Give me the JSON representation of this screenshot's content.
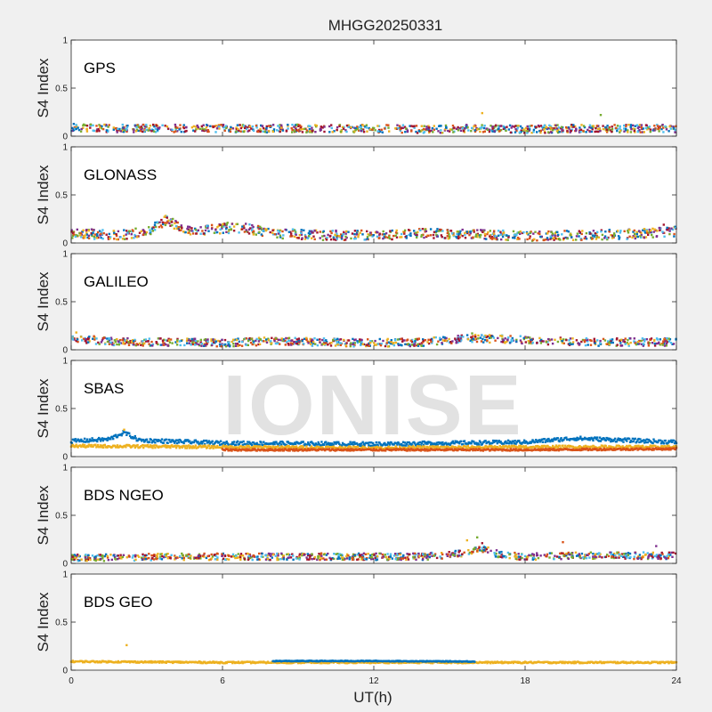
{
  "figure": {
    "title": "MHGG20250331",
    "watermark": "IONISE"
  },
  "colors": [
    "#0072bd",
    "#d95319",
    "#edb120",
    "#7e2f8e",
    "#77ac30",
    "#4dbeee",
    "#a2142f"
  ],
  "chart_data": [
    {
      "type": "scatter",
      "label": "GPS",
      "ylabel": "S4 Index",
      "xlabel": "",
      "xlim": [
        0,
        24
      ],
      "ylim": [
        0,
        1
      ],
      "yticks": [
        0,
        0.5,
        1
      ],
      "xticks": [],
      "grid": false,
      "trend": [
        [
          0,
          0.09
        ],
        [
          2,
          0.08
        ],
        [
          4,
          0.08
        ],
        [
          6,
          0.08
        ],
        [
          8,
          0.08
        ],
        [
          10,
          0.08
        ],
        [
          12,
          0.08
        ],
        [
          14,
          0.07
        ],
        [
          16,
          0.08
        ],
        [
          18,
          0.07
        ],
        [
          20,
          0.08
        ],
        [
          22,
          0.08
        ],
        [
          24,
          0.08
        ]
      ],
      "spread": 0.04,
      "outliers": [
        [
          16.3,
          0.24
        ],
        [
          21.0,
          0.22
        ]
      ]
    },
    {
      "type": "scatter",
      "label": "GLONASS",
      "ylabel": "S4 Index",
      "xlabel": "",
      "xlim": [
        0,
        24
      ],
      "ylim": [
        0,
        1
      ],
      "yticks": [
        0,
        0.5,
        1
      ],
      "xticks": [],
      "grid": false,
      "trend": [
        [
          0,
          0.1
        ],
        [
          1,
          0.09
        ],
        [
          2,
          0.08
        ],
        [
          3,
          0.12
        ],
        [
          3.8,
          0.24
        ],
        [
          4.5,
          0.12
        ],
        [
          6,
          0.15
        ],
        [
          7,
          0.15
        ],
        [
          8,
          0.1
        ],
        [
          10,
          0.08
        ],
        [
          12,
          0.08
        ],
        [
          14,
          0.1
        ],
        [
          16,
          0.09
        ],
        [
          18,
          0.07
        ],
        [
          20,
          0.08
        ],
        [
          22,
          0.09
        ],
        [
          24,
          0.12
        ]
      ],
      "spread": 0.05,
      "outliers": [
        [
          3.7,
          0.27
        ],
        [
          6.2,
          0.21
        ],
        [
          23.5,
          0.19
        ]
      ]
    },
    {
      "type": "scatter",
      "label": "GALILEO",
      "ylabel": "S4 Index",
      "xlabel": "",
      "xlim": [
        0,
        24
      ],
      "ylim": [
        0,
        1
      ],
      "yticks": [
        0,
        0.5,
        1
      ],
      "xticks": [],
      "grid": false,
      "trend": [
        [
          0,
          0.12
        ],
        [
          2,
          0.08
        ],
        [
          4,
          0.08
        ],
        [
          6,
          0.07
        ],
        [
          8,
          0.09
        ],
        [
          10,
          0.08
        ],
        [
          12,
          0.07
        ],
        [
          14,
          0.08
        ],
        [
          16,
          0.12
        ],
        [
          18,
          0.1
        ],
        [
          20,
          0.08
        ],
        [
          22,
          0.08
        ],
        [
          24,
          0.08
        ]
      ],
      "spread": 0.04,
      "outliers": [
        [
          0.2,
          0.18
        ],
        [
          15.9,
          0.17
        ]
      ]
    },
    {
      "type": "scatter",
      "label": "SBAS",
      "ylabel": "S4 Index",
      "xlabel": "",
      "xlim": [
        0,
        24
      ],
      "ylim": [
        0,
        1
      ],
      "yticks": [
        0,
        0.5,
        1
      ],
      "xticks": [],
      "grid": false,
      "bands": [
        {
          "color": 0,
          "trend": [
            [
              0,
              0.16
            ],
            [
              1.5,
              0.18
            ],
            [
              2.1,
              0.25
            ],
            [
              2.7,
              0.17
            ],
            [
              6,
              0.14
            ],
            [
              12,
              0.13
            ],
            [
              18,
              0.15
            ],
            [
              20,
              0.19
            ],
            [
              24,
              0.15
            ]
          ],
          "spread": 0.02
        },
        {
          "color": 2,
          "trend": [
            [
              0,
              0.11
            ],
            [
              6,
              0.1
            ],
            [
              12,
              0.09
            ],
            [
              18,
              0.1
            ],
            [
              24,
              0.1
            ]
          ],
          "spread": 0.015
        },
        {
          "color": 1,
          "trend": [
            [
              6,
              0.07
            ],
            [
              12,
              0.07
            ],
            [
              18,
              0.07
            ],
            [
              24,
              0.08
            ]
          ],
          "spread": 0.01
        }
      ],
      "outliers": [
        [
          2.1,
          0.28
        ]
      ]
    },
    {
      "type": "scatter",
      "label": "BDS NGEO",
      "ylabel": "S4 Index",
      "xlabel": "",
      "xlim": [
        0,
        24
      ],
      "ylim": [
        0,
        1
      ],
      "yticks": [
        0,
        0.5,
        1
      ],
      "xticks": [],
      "grid": false,
      "trend": [
        [
          0,
          0.06
        ],
        [
          2,
          0.06
        ],
        [
          4,
          0.07
        ],
        [
          6,
          0.07
        ],
        [
          8,
          0.07
        ],
        [
          10,
          0.07
        ],
        [
          12,
          0.07
        ],
        [
          14,
          0.07
        ],
        [
          15.5,
          0.1
        ],
        [
          16.2,
          0.16
        ],
        [
          17,
          0.09
        ],
        [
          18,
          0.07
        ],
        [
          20,
          0.08
        ],
        [
          22,
          0.08
        ],
        [
          24,
          0.08
        ]
      ],
      "spread": 0.035,
      "outliers": [
        [
          15.7,
          0.24
        ],
        [
          16.1,
          0.27
        ],
        [
          16.3,
          0.21
        ],
        [
          19.5,
          0.22
        ],
        [
          23.2,
          0.18
        ]
      ]
    },
    {
      "type": "scatter",
      "label": "BDS GEO",
      "ylabel": "S4 Index",
      "xlabel": "UT(h)",
      "xlim": [
        0,
        24
      ],
      "ylim": [
        0,
        1
      ],
      "yticks": [
        0,
        0.5,
        1
      ],
      "xticks": [
        0,
        6,
        12,
        18,
        24
      ],
      "grid": false,
      "bands": [
        {
          "color": 2,
          "trend": [
            [
              0,
              0.09
            ],
            [
              6,
              0.08
            ],
            [
              12,
              0.08
            ],
            [
              18,
              0.08
            ],
            [
              24,
              0.08
            ]
          ],
          "spread": 0.008
        },
        {
          "color": 0,
          "trend": [
            [
              8,
              0.095
            ],
            [
              12,
              0.095
            ],
            [
              16,
              0.09
            ]
          ],
          "spread": 0.004
        }
      ],
      "outliers": [
        [
          2.2,
          0.26
        ]
      ]
    }
  ]
}
